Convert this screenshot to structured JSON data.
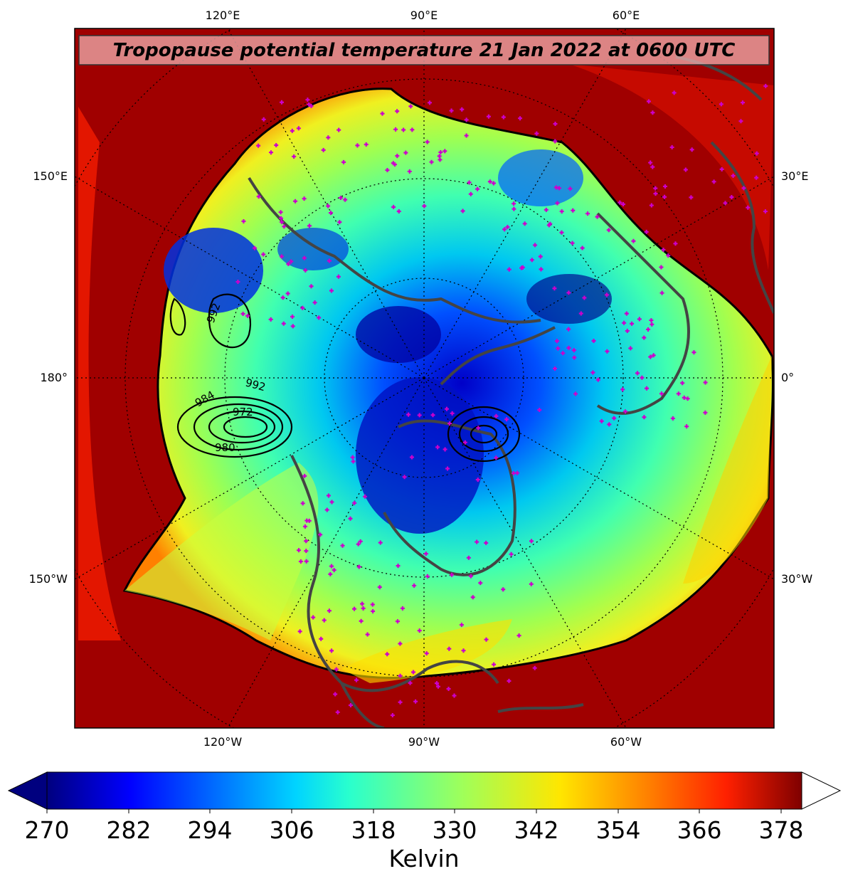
{
  "title": "Tropopause potential temperature 21 Jan 2022 at 0600 UTC",
  "longitude_labels": {
    "top": [
      "120°E",
      "90°E",
      "60°E"
    ],
    "bottom": [
      "120°W",
      "90°W",
      "60°W"
    ],
    "left": [
      "150°E",
      "180°",
      "150°W"
    ],
    "right": [
      "30°E",
      "0°",
      "30°W"
    ]
  },
  "colorbar": {
    "label": "Kelvin",
    "ticks": [
      "270",
      "282",
      "294",
      "306",
      "318",
      "330",
      "342",
      "354",
      "366",
      "378"
    ],
    "min": 270,
    "max": 381,
    "extend": "both"
  },
  "pressure_contour_labels": [
    "992",
    "992",
    "984",
    "972",
    "980"
  ],
  "colors": {
    "map_background": "#a00000",
    "station_marker": "#cc00cc",
    "coastline": "#444444"
  }
}
